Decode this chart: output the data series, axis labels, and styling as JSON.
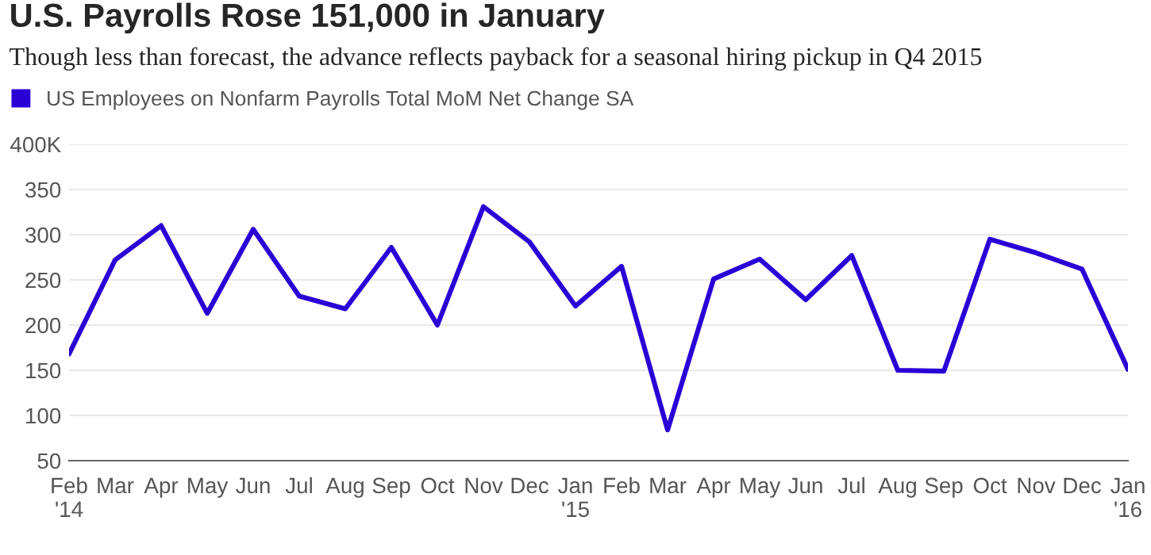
{
  "chart_data": {
    "type": "line",
    "title": "U.S. Payrolls Rose 151,000 in January",
    "subtitle": "Though less than forecast, the advance reflects payback for a seasonal hiring pickup in Q4 2015",
    "categories": [
      "Feb\n'14",
      "Mar",
      "Apr",
      "May",
      "Jun",
      "Jul",
      "Aug",
      "Sep",
      "Oct",
      "Nov",
      "Dec",
      "Jan\n'15",
      "Feb",
      "Mar",
      "Apr",
      "May",
      "Jun",
      "Jul",
      "Aug",
      "Sep",
      "Oct",
      "Nov",
      "Dec",
      "Jan\n'16"
    ],
    "series": [
      {
        "name": "US Employees on Nonfarm Payrolls Total MoM Net Change SA",
        "color": "#2a00d6",
        "values": [
          168,
          272,
          310,
          213,
          306,
          232,
          218,
          286,
          200,
          331,
          292,
          221,
          265,
          84,
          251,
          273,
          228,
          277,
          150,
          149,
          295,
          280,
          262,
          151
        ]
      }
    ],
    "ylim": [
      50,
      400
    ],
    "yticks": [
      50,
      100,
      150,
      200,
      250,
      300,
      350,
      {
        "value": 400,
        "label": "400K"
      }
    ],
    "grid": "y",
    "legend": "top left",
    "marker": "none",
    "line_style": "solid"
  }
}
